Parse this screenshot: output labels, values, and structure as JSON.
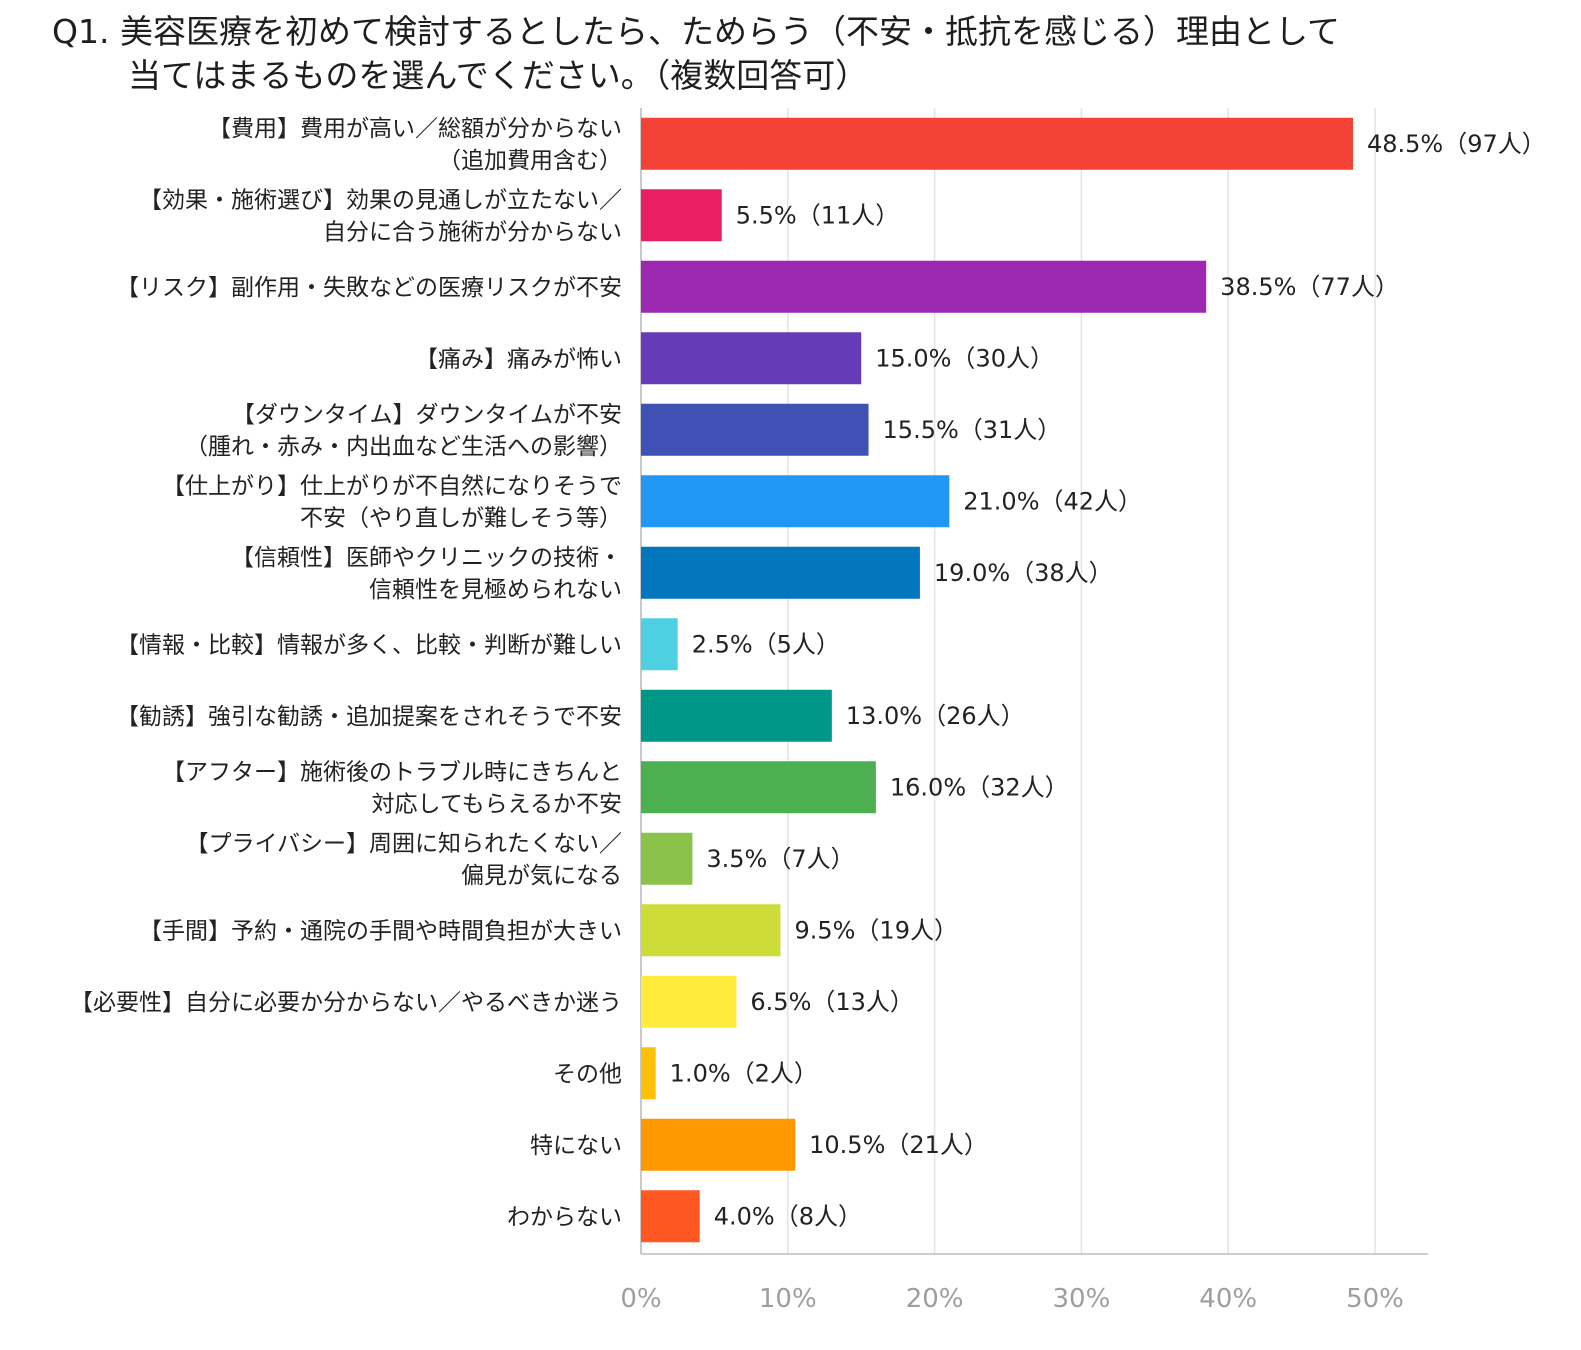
{
  "title": {
    "line1": "Q1. 美容医療を初めて検討するとしたら、ためらう（不安・抵抗を感じる）理由として",
    "line2": "当てはまるものを選んでください。（複数回答可）"
  },
  "chart_data": {
    "type": "bar",
    "orientation": "horizontal",
    "xlim": [
      0,
      50
    ],
    "grid": true,
    "legend": "none",
    "x_ticks": [
      "0%",
      "10%",
      "20%",
      "30%",
      "40%",
      "50%"
    ],
    "x_tick_values": [
      0,
      10,
      20,
      30,
      40,
      50
    ],
    "categories": [
      [
        "【費用】費用が高い／総額が分からない",
        "（追加費用含む）"
      ],
      [
        "【効果・施術選び】効果の見通しが立たない／",
        "自分に合う施術が分からない"
      ],
      [
        "【リスク】副作用・失敗などの医療リスクが不安"
      ],
      [
        "【痛み】痛みが怖い"
      ],
      [
        "【ダウンタイム】ダウンタイムが不安",
        "（腫れ・赤み・内出血など生活への影響）"
      ],
      [
        "【仕上がり】仕上がりが不自然になりそうで",
        "不安（やり直しが難しそう等）"
      ],
      [
        "【信頼性】医師やクリニックの技術・",
        "信頼性を見極められない"
      ],
      [
        "【情報・比較】情報が多く、比較・判断が難しい"
      ],
      [
        "【勧誘】強引な勧誘・追加提案をされそうで不安"
      ],
      [
        "【アフター】施術後のトラブル時にきちんと",
        "対応してもらえるか不安"
      ],
      [
        "【プライバシー】周囲に知られたくない／",
        "偏見が気になる"
      ],
      [
        "【手間】予約・通院の手間や時間負担が大きい"
      ],
      [
        "【必要性】自分に必要か分からない／やるべきか迷う"
      ],
      [
        "その他"
      ],
      [
        "特にない"
      ],
      [
        "わからない"
      ]
    ],
    "values": [
      48.5,
      5.5,
      38.5,
      15.0,
      15.5,
      21.0,
      19.0,
      2.5,
      13.0,
      16.0,
      3.5,
      9.5,
      6.5,
      1.0,
      10.5,
      4.0
    ],
    "value_labels": [
      "48.5%（97人）",
      "5.5%（11人）",
      "38.5%（77人）",
      "15.0%（30人）",
      "15.5%（31人）",
      "21.0%（42人）",
      "19.0%（38人）",
      "2.5%（5人）",
      "13.0%（26人）",
      "16.0%（32人）",
      "3.5%（7人）",
      "9.5%（19人）",
      "6.5%（13人）",
      "1.0%（2人）",
      "10.5%（21人）",
      "4.0%（8人）"
    ],
    "colors": [
      "#f44336",
      "#e91e63",
      "#9c27b0",
      "#673ab7",
      "#3f51b5",
      "#2196f3",
      "#0277bd",
      "#4dd0e1",
      "#009688",
      "#4caf50",
      "#8bc34a",
      "#cddc39",
      "#ffeb3b",
      "#ffc107",
      "#ff9800",
      "#ff5722"
    ]
  }
}
